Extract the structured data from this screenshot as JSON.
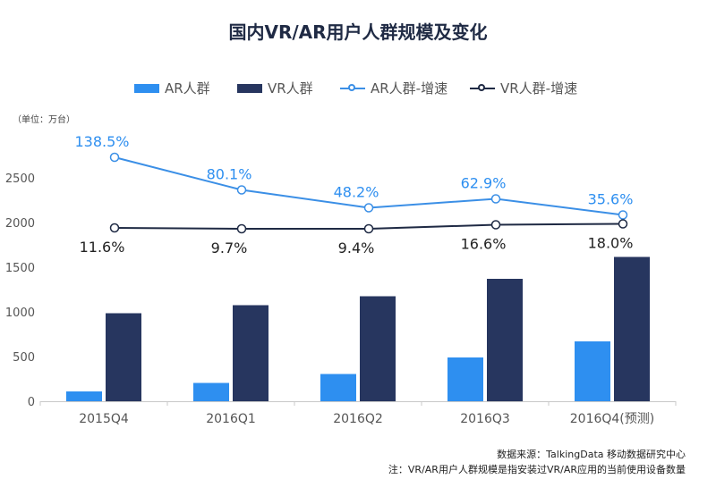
{
  "title": "国内VR/AR用户人群规模及变化",
  "legend": {
    "ar": "AR人群",
    "vr": "VR人群",
    "ar_growth": "AR人群-增速",
    "vr_growth": "VR人群-增速"
  },
  "unit": "（单位：万台）",
  "footer": {
    "source": "数据来源：TalkingData  移动数据研究中心",
    "note": "注：VR/AR用户人群规模是指安装过VR/AR应用的当前使用设备数量"
  },
  "colors": {
    "ar": "#2e8ff0",
    "vr": "#27365f",
    "ar_line": "#3b8fe6",
    "vr_line": "#1f2a44"
  },
  "chart_data": {
    "type": "bar",
    "categories": [
      "2015Q4",
      "2016Q1",
      "2016Q2",
      "2016Q3",
      "2016Q4(预测)"
    ],
    "series": [
      {
        "name": "AR人群",
        "values": [
          110,
          205,
          305,
          490,
          670
        ]
      },
      {
        "name": "VR人群",
        "values": [
          985,
          1075,
          1175,
          1370,
          1615
        ]
      }
    ],
    "line_series": [
      {
        "name": "AR人群-增速",
        "positions": [
          2730,
          2365,
          2165,
          2265,
          2085
        ],
        "labels": [
          "138.5%",
          "80.1%",
          "48.2%",
          "62.9%",
          "35.6%"
        ]
      },
      {
        "name": "VR人群-增速",
        "positions": [
          1940,
          1930,
          1930,
          1975,
          1985
        ],
        "labels": [
          "11.6%",
          "9.7%",
          "9.4%",
          "16.6%",
          "18.0%"
        ]
      }
    ],
    "yticks": [
      0,
      500,
      1000,
      1500,
      2000,
      2500
    ],
    "ylim": [
      0,
      2900
    ],
    "grid": false,
    "legend_position": "top"
  }
}
